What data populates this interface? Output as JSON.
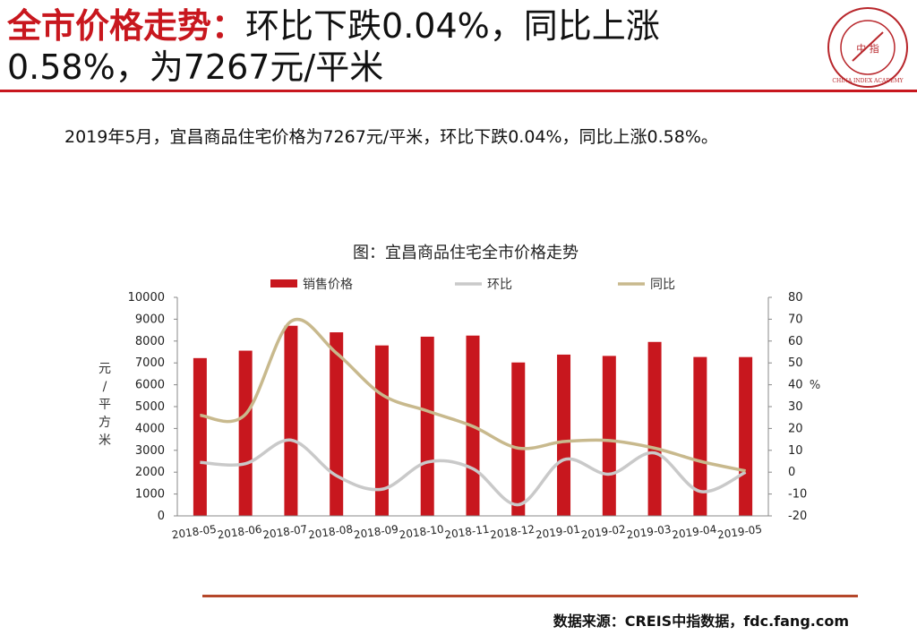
{
  "header": {
    "title_red": "全市价格走势：",
    "title_line1_rest": "环比下跌0.04%，同比上涨",
    "title_line2": "0.58%，为7267元/平米",
    "logo_text": "中 指",
    "logo_ring_text": "CHINA INDEX ACADEMY"
  },
  "summary": "2019年5月，宜昌商品住宅价格为7267元/平米，环比下跌0.04%，同比上涨0.58%。",
  "footer": {
    "source": "数据来源：CREIS中指数据，fdc.fang.com"
  },
  "colors": {
    "accent": "#c8171e",
    "bar": "#c8171e",
    "mom": "#c9c9c9",
    "yoy": "#c8b98d",
    "footer_rule": "#b5472a"
  },
  "chart_data": {
    "type": "bar",
    "title": "图：宜昌商品住宅全市价格走势",
    "categories": [
      "2018-05",
      "2018-06",
      "2018-07",
      "2018-08",
      "2018-09",
      "2018-10",
      "2018-11",
      "2018-12",
      "2019-01",
      "2019-02",
      "2019-03",
      "2019-04",
      "2019-05"
    ],
    "series": [
      {
        "name": "销售价格",
        "type": "bar",
        "axis": "left",
        "values": [
          7220,
          7560,
          8700,
          8400,
          7800,
          8200,
          8250,
          7020,
          7380,
          7320,
          7960,
          7270,
          7267
        ]
      },
      {
        "name": "环比",
        "type": "line",
        "axis": "right",
        "values": [
          4.5,
          3.9,
          14.7,
          -1.6,
          -7.8,
          4.6,
          1.6,
          -14.9,
          5.7,
          -0.9,
          8.8,
          -8.8,
          -0.04
        ]
      },
      {
        "name": "同比",
        "type": "line",
        "axis": "right",
        "values": [
          26.0,
          26.5,
          69.0,
          54.5,
          35.5,
          28.0,
          21.0,
          11.0,
          14.0,
          14.5,
          11.0,
          5.0,
          0.58
        ]
      }
    ],
    "ylabel_left": "元/平方米",
    "ylabel_right": "%",
    "ylim_left": [
      0,
      10000
    ],
    "ylim_right": [
      -20,
      80
    ],
    "yticks_left": [
      "0",
      "1000",
      "2000",
      "3000",
      "4000",
      "5000",
      "6000",
      "7000",
      "8000",
      "9000",
      "10000"
    ],
    "yticks_right": [
      "-20",
      "-10",
      "0",
      "10",
      "20",
      "30",
      "40",
      "50",
      "60",
      "70",
      "80"
    ],
    "legend": "top",
    "grid": false
  }
}
